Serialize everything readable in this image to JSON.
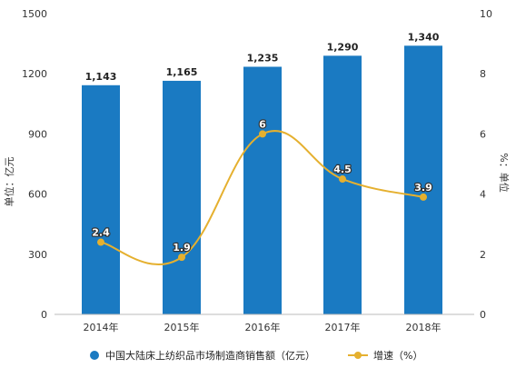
{
  "chart_data": {
    "type": "bar",
    "categories": [
      "2014年",
      "2015年",
      "2016年",
      "2017年",
      "2018年"
    ],
    "series": [
      {
        "name": "中国大陆床上纺织品市场制造商销售额（亿元）",
        "type": "bar",
        "axis": "left",
        "color": "#1a7ac2",
        "values": [
          1143,
          1165,
          1235,
          1290,
          1340
        ],
        "labels": [
          "1,143",
          "1,165",
          "1,235",
          "1,290",
          "1,340"
        ]
      },
      {
        "name": "增速（%）",
        "type": "line",
        "axis": "right",
        "color": "#e5b02f",
        "values": [
          2.4,
          1.9,
          6,
          4.5,
          3.9
        ],
        "labels": [
          "2.4",
          "1.9",
          "6",
          "4.5",
          "3.9"
        ]
      }
    ],
    "ylabel": "单位：亿元",
    "y2label": "%：单位",
    "ylim": [
      0,
      1500
    ],
    "yticks": [
      "0",
      "300",
      "600",
      "900",
      "1200",
      "1500"
    ],
    "y2lim": [
      0,
      10
    ],
    "y2ticks": [
      "0",
      "2",
      "4",
      "6",
      "8",
      "10"
    ],
    "grid": false,
    "legend_position": "bottom"
  }
}
